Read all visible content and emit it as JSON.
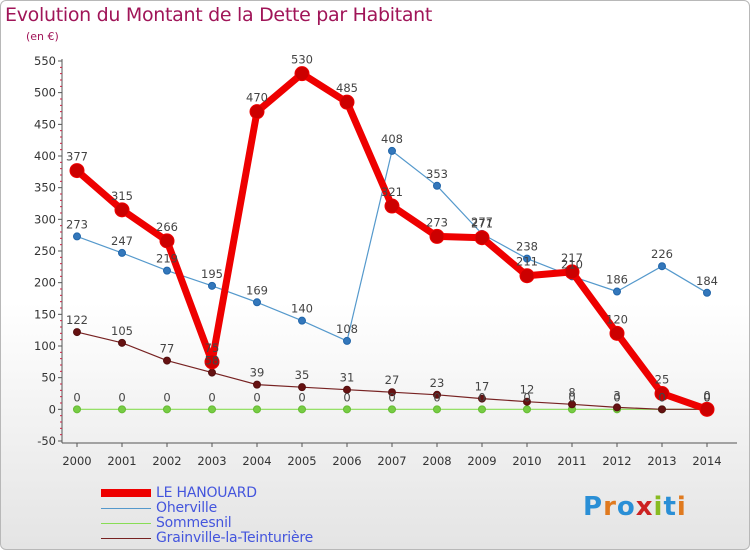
{
  "title": "Evolution du Montant de la Dette par Habitant",
  "unit": "(en €)",
  "logo": "Proxiti",
  "chart_data": {
    "type": "line",
    "x": [
      "2000",
      "2001",
      "2002",
      "2003",
      "2004",
      "2005",
      "2006",
      "2007",
      "2008",
      "2009",
      "2010",
      "2011",
      "2012",
      "2013",
      "2014"
    ],
    "ylim": [
      -50,
      550
    ],
    "yticks": [
      -50,
      0,
      50,
      100,
      150,
      200,
      250,
      300,
      350,
      400,
      450,
      500,
      550
    ],
    "grid": false,
    "legend_position": "bottom-left",
    "series": [
      {
        "name": "LE HANOUARD",
        "color": "#ee0000",
        "values": [
          377,
          315,
          266,
          75,
          470,
          530,
          485,
          321,
          273,
          271,
          211,
          217,
          120,
          25,
          0
        ],
        "labels": [
          "377",
          "315",
          "266",
          "75",
          "470",
          "530",
          "485",
          "321",
          "273",
          "271",
          "211",
          "217",
          "120",
          "25",
          "0"
        ]
      },
      {
        "name": "Oherville",
        "color": "#5599cc",
        "values": [
          273,
          247,
          219,
          195,
          169,
          140,
          108,
          408,
          353,
          277,
          238,
          210,
          186,
          226,
          184
        ],
        "labels": [
          "273",
          "247",
          "219",
          "195",
          "169",
          "140",
          "108",
          "408",
          "353",
          "277",
          "238",
          "210",
          "186",
          "226",
          "184"
        ]
      },
      {
        "name": "Sommesnil",
        "color": "#88dd55",
        "values": [
          0,
          0,
          0,
          0,
          0,
          0,
          0,
          0,
          0,
          0,
          0,
          0,
          0,
          0,
          0
        ],
        "labels": [
          "0",
          "0",
          "0",
          "0",
          "0",
          "0",
          "0",
          "0",
          "0",
          "0",
          "0",
          "0",
          "0",
          "0",
          "0"
        ]
      },
      {
        "name": "Grainville-la-Teinturière",
        "color": "#772222",
        "values": [
          122,
          105,
          77,
          58,
          39,
          35,
          31,
          27,
          23,
          17,
          12,
          8,
          3,
          0,
          0
        ],
        "labels": [
          "122",
          "105",
          "77",
          "58",
          "39",
          "35",
          "31",
          "27",
          "23",
          "17",
          "12",
          "8",
          "3",
          "0",
          "0"
        ]
      }
    ]
  }
}
